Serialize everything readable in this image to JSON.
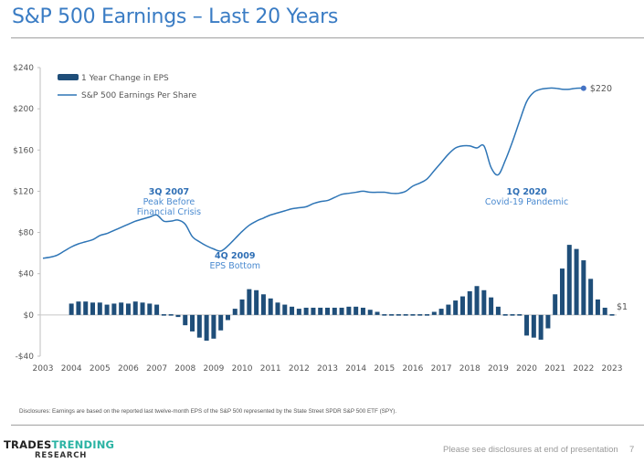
{
  "slide": {
    "title": "S&P 500 Earnings – Last 20 Years",
    "disclosure": "Disclosures: Earnings are based on the reported last twelve-month EPS of the S&P 500 represented by the State Street SPDR S&P 500 ETF (SPY).",
    "footer_note": "Please see disclosures at end of presentation",
    "page_number": "7",
    "logo": {
      "part1": "TRADES",
      "part2": "TRENDING",
      "sub": "RESEARCH"
    }
  },
  "colors": {
    "title": "#3a7cc4",
    "bar": "#1f4e79",
    "line": "#2e75b6",
    "annotation": "#2f6fb5",
    "logo_accent": "#2ab3a3"
  },
  "chart_data": {
    "type": "bar+line",
    "title": "S&P 500 Earnings – Last 20 Years",
    "xlabel": "",
    "ylabel": "",
    "ylim": [
      -40,
      240
    ],
    "yticks": [
      -40,
      0,
      40,
      80,
      120,
      160,
      200,
      240
    ],
    "ytick_labels": [
      "-$40",
      "$0",
      "$40",
      "$80",
      "$120",
      "$160",
      "$200",
      "$240"
    ],
    "xlim": [
      2003,
      2023
    ],
    "xticks": [
      2003,
      2004,
      2005,
      2006,
      2007,
      2008,
      2009,
      2010,
      2011,
      2012,
      2013,
      2014,
      2015,
      2016,
      2017,
      2018,
      2019,
      2020,
      2021,
      2022,
      2023
    ],
    "xtick_labels": [
      "2003",
      "2004",
      "2005",
      "2006",
      "2007",
      "2008",
      "2009",
      "2010",
      "2011",
      "2012",
      "2013",
      "2014",
      "2015",
      "2016",
      "2017",
      "2018",
      "2019",
      "2020",
      "2021",
      "2022",
      "2023"
    ],
    "grid": false,
    "legend_position": "top-left",
    "series": [
      {
        "name": "1 Year Change in EPS",
        "type": "bar",
        "x_start": 2004.0,
        "x_step": 0.25,
        "values": [
          11,
          13,
          13,
          12,
          12,
          10,
          11,
          12,
          11,
          13,
          12,
          11,
          10,
          1,
          -1,
          -2,
          -10,
          -16,
          -22,
          -25,
          -23,
          -15,
          -5,
          6,
          15,
          25,
          24,
          20,
          16,
          12,
          10,
          8,
          6,
          7,
          7,
          7,
          7,
          7,
          7,
          8,
          8,
          7,
          5,
          3,
          1,
          0,
          -1,
          -1,
          -1,
          -1,
          0,
          3,
          6,
          10,
          14,
          18,
          23,
          28,
          24,
          17,
          8,
          1,
          0,
          0,
          -20,
          -22,
          -24,
          -13,
          20,
          45,
          68,
          64,
          53,
          35,
          15,
          7,
          1
        ]
      },
      {
        "name": "S&P 500 Earnings Per Share",
        "type": "line",
        "x_start": 2003.0,
        "x_step": 0.25,
        "values": [
          55,
          56,
          58,
          62,
          66,
          69,
          71,
          73,
          77,
          79,
          82,
          85,
          88,
          91,
          93,
          95,
          97,
          91,
          91,
          92,
          88,
          76,
          71,
          67,
          64,
          62,
          67,
          74,
          81,
          87,
          91,
          94,
          97,
          99,
          101,
          103,
          104,
          105,
          108,
          110,
          111,
          114,
          117,
          118,
          119,
          120,
          119,
          119,
          119,
          118,
          118,
          120,
          125,
          128,
          132,
          140,
          148,
          156,
          162,
          164,
          164,
          162,
          164,
          143,
          136,
          150,
          168,
          188,
          207,
          216,
          219,
          220,
          220,
          219,
          219,
          220,
          220
        ],
        "end_label": "$220"
      }
    ],
    "annotations": [
      {
        "x": 2007.75,
        "bold": "3Q 2007",
        "text": [
          "Peak Before",
          "Financial Crisis"
        ]
      },
      {
        "x": 2009.75,
        "bold": "4Q 2009",
        "text": [
          "EPS Bottom"
        ]
      },
      {
        "x": 2020.0,
        "bold": "1Q 2020",
        "text": [
          "Covid-19 Pandemic"
        ]
      }
    ],
    "bar_end_label": "$1"
  }
}
